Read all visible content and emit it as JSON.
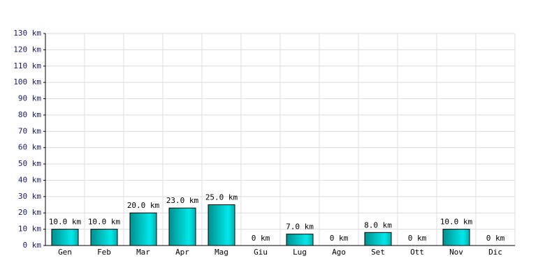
{
  "chart_data": {
    "type": "bar",
    "categories": [
      "Gen",
      "Feb",
      "Mar",
      "Apr",
      "Mag",
      "Giu",
      "Lug",
      "Ago",
      "Set",
      "Ott",
      "Nov",
      "Dic"
    ],
    "values": [
      10,
      10,
      20,
      23,
      25,
      0,
      7,
      0,
      8,
      0,
      10,
      0
    ],
    "value_labels": [
      "10.0 km",
      "10.0 km",
      "20.0 km",
      "23.0 km",
      "25.0 km",
      "0 km",
      "7.0 km",
      "0 km",
      "8.0 km",
      "0 km",
      "10.0 km",
      "0 km"
    ],
    "color": "#00e8e8",
    "ylim": [
      0,
      130
    ],
    "yticks": [
      {
        "value": 0,
        "label": "0 km"
      },
      {
        "value": 10,
        "label": "10 km"
      },
      {
        "value": 20,
        "label": "20 km"
      },
      {
        "value": 30,
        "label": "30 km"
      },
      {
        "value": 40,
        "label": "40 km"
      },
      {
        "value": 50,
        "label": "50 km"
      },
      {
        "value": 60,
        "label": "60 km"
      },
      {
        "value": 70,
        "label": "70 km"
      },
      {
        "value": 80,
        "label": "80 km"
      },
      {
        "value": 90,
        "label": "90 km"
      },
      {
        "value": 100,
        "label": "100 km"
      },
      {
        "value": 110,
        "label": "110 km"
      },
      {
        "value": 120,
        "label": "120 km"
      },
      {
        "value": 130,
        "label": "130 km"
      }
    ],
    "grid": true
  }
}
